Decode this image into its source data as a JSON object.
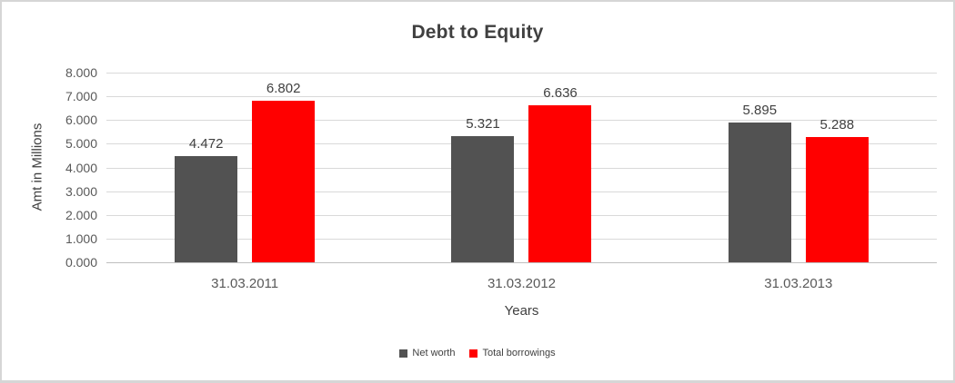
{
  "frame": {
    "background": "#ffffff",
    "border_color": "#d6d6d6"
  },
  "chart_data": {
    "type": "bar",
    "title": "Debt to Equity",
    "xlabel": "Years",
    "ylabel": "Amt in Millions",
    "categories": [
      "31.03.2011",
      "31.03.2012",
      "31.03.2013"
    ],
    "series": [
      {
        "name": "Net worth",
        "color": "#525252",
        "values": [
          4.472,
          5.321,
          5.895
        ],
        "labels": [
          "4.472",
          "5.321",
          "5.895"
        ]
      },
      {
        "name": "Total borrowings",
        "color": "#ff0000",
        "values": [
          6.802,
          6.636,
          5.288
        ],
        "labels": [
          "6.802",
          "6.636",
          "5.288"
        ]
      }
    ],
    "ylim": [
      0,
      8
    ],
    "yticks": [
      "0.000",
      "1.000",
      "2.000",
      "3.000",
      "4.000",
      "5.000",
      "6.000",
      "7.000",
      "8.000"
    ],
    "grid": true,
    "legend_position": "bottom",
    "colors": {
      "gridline": "#d9d9d9",
      "axis_line": "#bfbfbf",
      "title_text": "#404040",
      "tick_label_text": "#595959",
      "data_label_text": "#404040"
    }
  }
}
